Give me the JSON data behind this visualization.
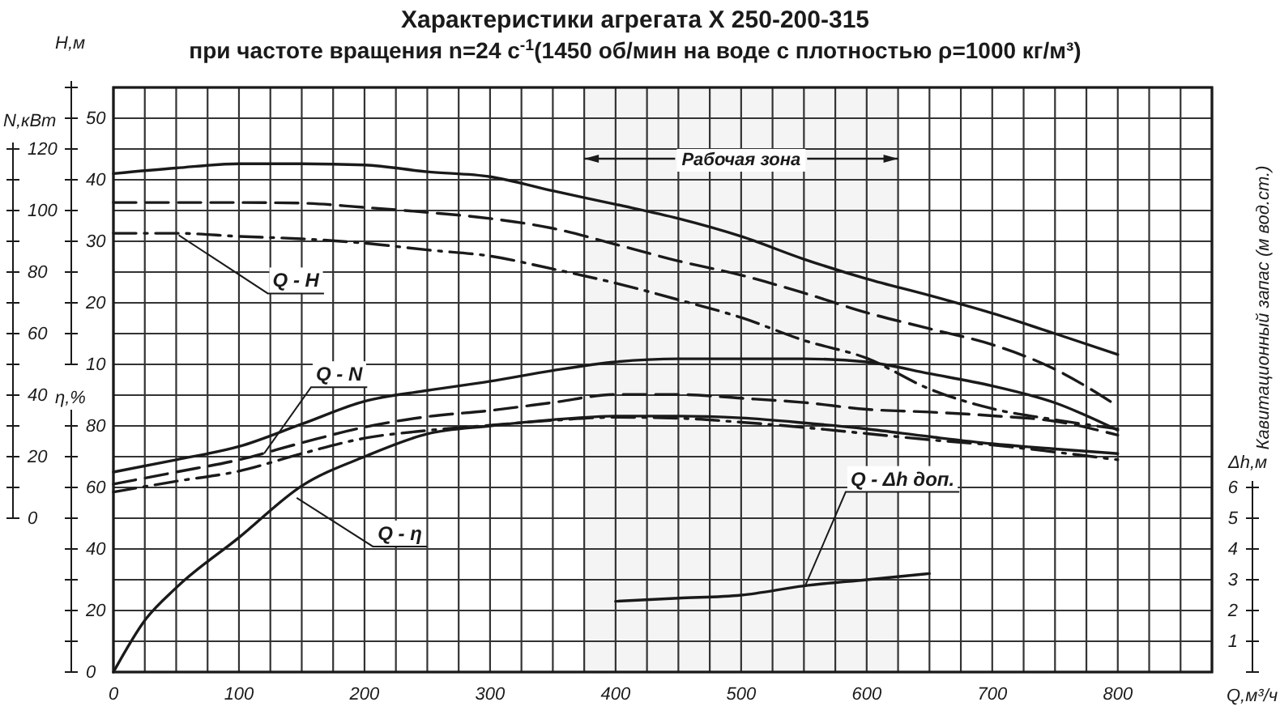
{
  "chart_data": [
    {
      "type": "line",
      "title": "Характеристики агрегата Х 250-200-315",
      "subtitle": "при частоте вращения n=24 с$^{-1}$(1450 об/мин на воде с плотностью ρ=1000 кг/м³)",
      "xlabel": "Q,м³/ч",
      "ylabel": "H,м",
      "y2label": "N,кВт",
      "y3label": "η,%",
      "xlim": [
        0,
        875
      ],
      "xticks": [
        0,
        {
          "value": 25,
          "label": null
        },
        {
          "value": 50,
          "label": null
        },
        {
          "value": 75,
          "label": null
        },
        100,
        {
          "value": 125,
          "label": null
        },
        {
          "value": 150,
          "label": null
        },
        {
          "value": 175,
          "label": null
        },
        200,
        {
          "value": 225,
          "label": null
        },
        {
          "value": 250,
          "label": null
        },
        {
          "value": 275,
          "label": null
        },
        300,
        {
          "value": 325,
          "label": null
        },
        {
          "value": 350,
          "label": null
        },
        {
          "value": 375,
          "label": null
        },
        400,
        {
          "value": 425,
          "label": null
        },
        {
          "value": 450,
          "label": null
        },
        {
          "value": 475,
          "label": null
        },
        500,
        {
          "value": 525,
          "label": null
        },
        {
          "value": 550,
          "label": null
        },
        {
          "value": 575,
          "label": null
        },
        600,
        {
          "value": 625,
          "label": null
        },
        {
          "value": 650,
          "label": null
        },
        {
          "value": 675,
          "label": null
        },
        700,
        {
          "value": 725,
          "label": null
        },
        {
          "value": 750,
          "label": null
        },
        {
          "value": 775,
          "label": null
        },
        800,
        {
          "value": 825,
          "label": null
        },
        {
          "value": 850,
          "label": null
        },
        {
          "value": 875,
          "label": null
        }
      ],
      "ylim": [
        -40,
        55
      ],
      "yticks": [
        10,
        {
          "value": 15,
          "label": null
        },
        20,
        {
          "value": 25,
          "label": null
        },
        30,
        {
          "value": 35,
          "label": null
        },
        40,
        {
          "value": 45,
          "label": null
        },
        50,
        {
          "value": 55,
          "label": null
        }
      ],
      "y2lim": [
        -50,
        140
      ],
      "y2ticks": [
        0,
        {
          "value": 10,
          "label": null
        },
        20,
        {
          "value": 30,
          "label": null
        },
        40,
        {
          "value": 50,
          "label": null
        },
        60,
        {
          "value": 70,
          "label": null
        },
        80,
        {
          "value": 90,
          "label": null
        },
        100,
        {
          "value": 110,
          "label": null
        },
        120
      ],
      "y3lim": [
        0,
        190
      ],
      "y3ticks": [
        0,
        {
          "value": 10,
          "label": null
        },
        20,
        {
          "value": 30,
          "label": null
        },
        40,
        {
          "value": 50,
          "label": null
        },
        60,
        {
          "value": 70,
          "label": null
        },
        80,
        {
          "value": 90,
          "label": null
        }
      ],
      "grid": true,
      "bands": [
        {
          "axis": "x",
          "from": 375,
          "to": 625,
          "label": "Рабочая зона",
          "color": "#f4f4f4"
        }
      ],
      "annotations": [
        {
          "text": "Q - H",
          "x": 52,
          "y": 31
        },
        {
          "text": "Q - N",
          "x": 120,
          "y": -4.5
        },
        {
          "text": "Q - η",
          "x": 146,
          "y": -11.7
        }
      ],
      "series": [
        {
          "color": "#1a1a1a",
          "line_style": "solid",
          "x": [
            0,
            50,
            100,
            150,
            200,
            250,
            300,
            350,
            400,
            450,
            500,
            550,
            600,
            650,
            700,
            750,
            800
          ],
          "values": [
            41.0,
            41.9,
            42.6,
            42.6,
            42.4,
            41.3,
            40.5,
            38.2,
            36.0,
            33.7,
            30.8,
            27.1,
            23.9,
            21.2,
            18.3,
            15.0,
            11.6
          ]
        },
        {
          "color": "#1a1a1a",
          "line_style": "dashed",
          "x": [
            0,
            50,
            100,
            150,
            200,
            250,
            300,
            350,
            400,
            450,
            500,
            550,
            600,
            650,
            700,
            750,
            800
          ],
          "values": [
            36.3,
            36.3,
            36.3,
            36.2,
            35.5,
            34.7,
            33.7,
            32.1,
            29.5,
            26.8,
            24.5,
            21.6,
            18.4,
            15.8,
            13.2,
            9.2,
            3.2
          ]
        },
        {
          "color": "#1a1a1a",
          "line_style": "dotted",
          "x": [
            0,
            50,
            100,
            150,
            200,
            250,
            300,
            350,
            400,
            450,
            500,
            550,
            600,
            650,
            700,
            750,
            800
          ],
          "values": [
            31.3,
            31.3,
            30.8,
            30.4,
            29.7,
            28.6,
            27.6,
            25.5,
            23.2,
            20.5,
            17.6,
            13.9,
            11.0,
            6.0,
            2.8,
            1.0,
            -0.5
          ]
        },
        {
          "color": "#1a1a1a",
          "line_style": "solid",
          "axis": "y2",
          "x": [
            0,
            50,
            100,
            150,
            200,
            250,
            300,
            350,
            400,
            450,
            500,
            550,
            600,
            650,
            700,
            750,
            800
          ],
          "values": [
            15,
            19,
            23.3,
            30.6,
            38,
            41.5,
            44.5,
            48,
            50.8,
            51.8,
            51.8,
            51.8,
            50.8,
            47,
            43,
            37.5,
            28.6
          ]
        },
        {
          "color": "#1a1a1a",
          "line_style": "dashed",
          "axis": "y2",
          "x": [
            0,
            50,
            100,
            150,
            200,
            250,
            300,
            350,
            400,
            450,
            500,
            550,
            600,
            650,
            700,
            750,
            800
          ],
          "values": [
            11.1,
            15,
            19,
            24.5,
            29.6,
            33,
            35,
            37.6,
            40.2,
            40.2,
            39,
            37.6,
            35.4,
            34.5,
            33.3,
            31.5,
            27
          ]
        },
        {
          "color": "#1a1a1a",
          "line_style": "dotted",
          "axis": "y2",
          "x": [
            0,
            50,
            100,
            150,
            200,
            250,
            300,
            350,
            400,
            450,
            500,
            550,
            600,
            650,
            700,
            750,
            800
          ],
          "values": [
            8.5,
            12,
            15.3,
            21,
            26,
            28.5,
            30.2,
            31.8,
            32.8,
            32.5,
            31.2,
            29.5,
            27.5,
            25.5,
            23.8,
            21.5,
            19
          ]
        },
        {
          "color": "#1a1a1a",
          "line_style": "solid",
          "axis": "y3",
          "x": [
            0,
            25,
            50,
            100,
            150,
            200,
            250,
            300,
            350,
            400,
            450,
            500,
            550,
            600,
            650,
            700,
            750,
            800
          ],
          "values": [
            0,
            16.8,
            27.4,
            43.7,
            60.5,
            70,
            77.4,
            80,
            82,
            83.2,
            83.2,
            82.6,
            81,
            79,
            76.5,
            74.2,
            72.5,
            71
          ]
        }
      ]
    },
    {
      "type": "line",
      "ylabel": "Δh,м",
      "tick_labels": "y",
      "xlim": [
        0,
        875
      ],
      "ylim": [
        0,
        19
      ],
      "yticks": [
        {
          "value": 0,
          "label": null
        },
        1,
        2,
        3,
        4,
        5,
        6
      ],
      "annotations": [
        {
          "text": "Q - Δh доп.",
          "x": 551,
          "y": 2.8
        },
        "Кавитационный запас (м вод.ст.)"
      ],
      "series": [
        {
          "color": "#1a1a1a",
          "line_style": "solid",
          "x": [
            400,
            450,
            500,
            550,
            600,
            650
          ],
          "values": [
            2.3,
            2.4,
            2.5,
            2.8,
            3.0,
            3.2
          ]
        }
      ]
    }
  ]
}
